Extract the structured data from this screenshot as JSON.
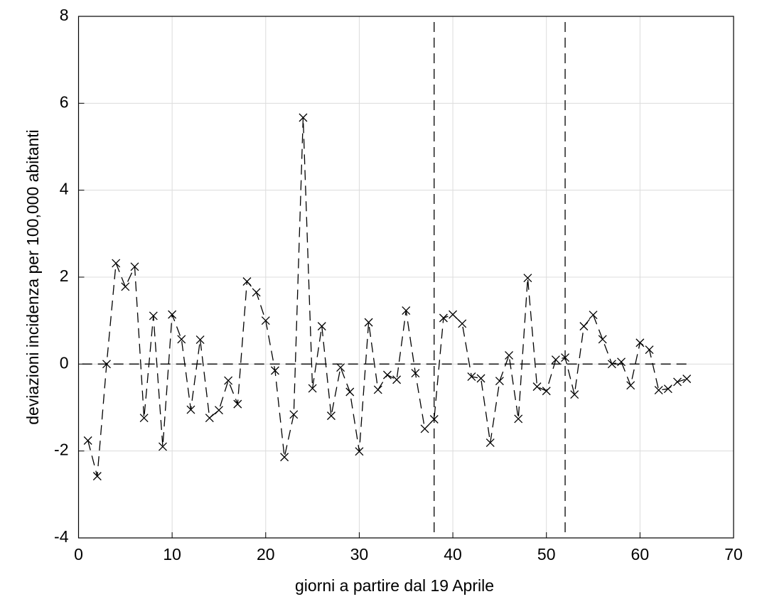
{
  "chart_data": {
    "type": "line",
    "xlabel": "giorni a partire dal 19 Aprile",
    "ylabel": "deviazioni  incidenza  per  100,000  abitanti",
    "x": [
      1,
      2,
      3,
      4,
      5,
      6,
      7,
      8,
      9,
      10,
      11,
      12,
      13,
      14,
      15,
      16,
      17,
      18,
      19,
      20,
      21,
      22,
      23,
      24,
      25,
      26,
      27,
      28,
      29,
      30,
      31,
      32,
      33,
      34,
      35,
      36,
      37,
      38,
      39,
      40,
      41,
      42,
      43,
      44,
      45,
      46,
      47,
      48,
      49,
      50,
      51,
      52,
      53,
      54,
      55,
      56,
      57,
      58,
      59,
      60,
      61,
      62,
      63,
      64,
      65
    ],
    "series": [
      {
        "color": "#000000",
        "values": [
          -1.76,
          -2.58,
          0,
          2.32,
          1.78,
          2.24,
          -1.24,
          1.11,
          -1.9,
          1.14,
          0.57,
          -1.05,
          0.56,
          -1.24,
          -1.06,
          -0.38,
          -0.92,
          1.9,
          1.65,
          1.0,
          -0.15,
          -2.14,
          -1.16,
          5.67,
          -0.56,
          0.87,
          -1.19,
          -0.08,
          -0.64,
          -2.01,
          0.96,
          -0.59,
          -0.25,
          -0.36,
          1.23,
          -0.21,
          -1.49,
          -1.27,
          1.06,
          1.14,
          0.93,
          -0.29,
          -0.33,
          -1.81,
          -0.39,
          0.2,
          -1.26,
          1.98,
          -0.52,
          -0.62,
          0.1,
          0.15,
          -0.7,
          0.87,
          1.13,
          0.57,
          0,
          0.05,
          -0.49,
          0.49,
          0.33,
          -0.6,
          -0.57,
          -0.41,
          -0.34
        ]
      }
    ],
    "vlines": [
      38,
      52
    ],
    "hline": 0,
    "xlim": [
      0,
      70
    ],
    "xticks": [
      0,
      10,
      20,
      30,
      40,
      50,
      60,
      70
    ],
    "ylim": [
      -4,
      8
    ],
    "yticks": [
      -4,
      -2,
      0,
      2,
      4,
      6,
      8
    ],
    "grid": true
  }
}
